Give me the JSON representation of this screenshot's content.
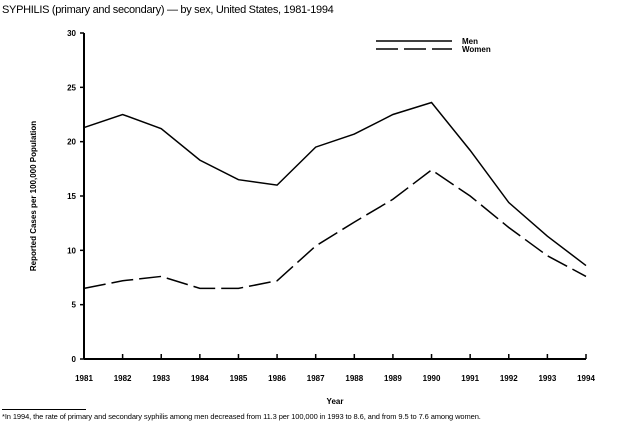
{
  "chart_data": {
    "type": "line",
    "title": "SYPHILIS (primary and secondary) — by sex, United States, 1981-1994",
    "xlabel": "Year",
    "ylabel": "Reported Cases per 100,000 Population",
    "x": [
      1981,
      1982,
      1983,
      1984,
      1985,
      1986,
      1987,
      1988,
      1989,
      1990,
      1991,
      1992,
      1993,
      1994
    ],
    "ylim": [
      0,
      30
    ],
    "yticks": [
      0,
      5,
      10,
      15,
      20,
      25,
      30
    ],
    "grid": false,
    "legend_position": "top-right",
    "series": [
      {
        "name": "Men",
        "style": "solid",
        "values": [
          21.3,
          22.5,
          21.2,
          18.3,
          16.5,
          16.0,
          19.5,
          20.7,
          22.5,
          23.6,
          19.2,
          14.4,
          11.3,
          8.6
        ]
      },
      {
        "name": "Women",
        "style": "dashed",
        "values": [
          6.5,
          7.2,
          7.6,
          6.5,
          6.5,
          7.2,
          10.4,
          12.6,
          14.7,
          17.4,
          15.0,
          12.1,
          9.5,
          7.6
        ]
      }
    ],
    "footnote": "*In 1994, the rate of primary and secondary syphilis among men decreased from 11.3 per 100,000 in 1993 to 8.6, and from 9.5 to 7.6 among women."
  }
}
